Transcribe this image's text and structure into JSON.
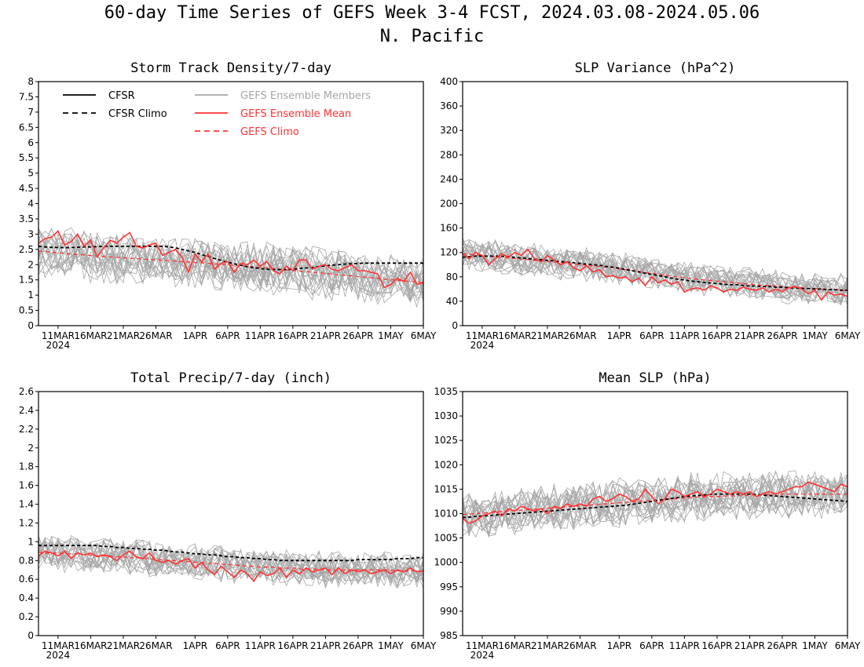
{
  "figure": {
    "title": "60-day Time Series of GEFS Week 3-4 FCST, 2024.03.08-2024.05.06",
    "subtitle": "N. Pacific"
  },
  "x_axis": {
    "ticks": [
      "11MAR",
      "16MAR",
      "21MAR",
      "26MAR",
      "1APR",
      "6APR",
      "11APR",
      "16APR",
      "21APR",
      "26APR",
      "1MAY",
      "6MAY"
    ],
    "tick_day_index": [
      3,
      8,
      13,
      18,
      24,
      29,
      34,
      39,
      44,
      49,
      54,
      59
    ],
    "year_label": "2024",
    "dates": "2024-03-08 to 2024-05-06"
  },
  "legend": {
    "cfsr": "CFSR",
    "cfsr_climo": "CFSR Climo",
    "gefs_members": "GEFS Ensemble Members",
    "gefs_mean": "GEFS Ensemble Mean",
    "gefs_climo": "GEFS Climo"
  },
  "colors": {
    "cfsr": "#000000",
    "members": "#a6a6a6",
    "gefs_mean": "#ff3333",
    "gefs_climo": "#ff3333"
  },
  "chart_data": [
    {
      "type": "line",
      "title": "Storm Track Density/7-day",
      "ylim": [
        0,
        8
      ],
      "yticks": [
        0,
        0.5,
        1,
        1.5,
        2,
        2.5,
        3,
        3.5,
        4,
        4.5,
        5,
        5.5,
        6,
        6.5,
        7,
        7.5,
        8
      ],
      "yticklabels": [
        "0",
        "0.5",
        "1",
        "1.5",
        "2",
        "2.5",
        "3",
        "3.5",
        "4",
        "4.5",
        "5",
        "5.5",
        "6",
        "6.5",
        "7",
        "7.5",
        "8"
      ],
      "cfsr_climo": [
        2.6,
        2.58,
        2.57,
        2.56,
        2.56,
        2.56,
        2.57,
        2.58,
        2.58,
        2.59,
        2.6,
        2.6,
        2.6,
        2.6,
        2.6,
        2.6,
        2.6,
        2.6,
        2.6,
        2.6,
        2.58,
        2.55,
        2.5,
        2.45,
        2.4,
        2.33,
        2.27,
        2.2,
        2.14,
        2.08,
        2.03,
        1.98,
        1.93,
        1.9,
        1.87,
        1.85,
        1.84,
        1.84,
        1.84,
        1.85,
        1.87,
        1.89,
        1.91,
        1.94,
        1.96,
        1.98,
        2.0,
        2.02,
        2.03,
        2.04,
        2.05,
        2.05,
        2.05,
        2.05,
        2.05,
        2.05,
        2.05,
        2.05,
        2.05,
        2.05
      ],
      "gefs_climo": [
        2.45,
        2.43,
        2.41,
        2.39,
        2.37,
        2.35,
        2.33,
        2.32,
        2.3,
        2.28,
        2.27,
        2.25,
        2.24,
        2.22,
        2.21,
        2.2,
        2.18,
        2.17,
        2.16,
        2.14,
        2.13,
        2.12,
        2.1,
        2.09,
        2.07,
        2.06,
        2.04,
        2.03,
        2.01,
        2.0,
        1.98,
        1.96,
        1.95,
        1.93,
        1.91,
        1.89,
        1.87,
        1.85,
        1.83,
        1.81,
        1.79,
        1.77,
        1.75,
        1.73,
        1.71,
        1.69,
        1.67,
        1.65,
        1.63,
        1.61,
        1.59,
        1.57,
        1.55,
        1.53,
        1.51,
        1.49,
        1.47,
        1.45,
        1.43,
        1.42
      ],
      "gefs_mean": [
        2.7,
        2.85,
        2.9,
        3.1,
        2.65,
        2.75,
        3.0,
        2.6,
        2.8,
        2.25,
        2.55,
        2.8,
        2.7,
        2.9,
        3.05,
        2.6,
        2.55,
        2.65,
        2.7,
        2.3,
        2.4,
        2.5,
        2.25,
        1.75,
        2.35,
        2.1,
        2.35,
        1.85,
        2.05,
        2.1,
        1.75,
        2.05,
        2.0,
        2.15,
        1.95,
        2.1,
        1.8,
        1.7,
        1.95,
        1.8,
        2.15,
        2.15,
        1.85,
        1.95,
        2.0,
        1.85,
        1.8,
        1.9,
        2.0,
        1.8,
        1.8,
        1.75,
        1.7,
        1.25,
        1.35,
        1.55,
        1.45,
        1.75,
        1.35,
        1.4
      ],
      "member_count": 21,
      "member_spread": 0.7
    },
    {
      "type": "line",
      "title": "SLP Variance (hPa^2)",
      "ylim": [
        0,
        400
      ],
      "yticks": [
        0,
        40,
        80,
        120,
        160,
        200,
        240,
        280,
        320,
        360,
        400
      ],
      "yticklabels": [
        "0",
        "40",
        "80",
        "120",
        "160",
        "200",
        "240",
        "280",
        "320",
        "360",
        "400"
      ],
      "cfsr_climo": [
        112,
        113,
        114,
        114,
        114,
        114,
        114,
        113,
        112,
        111,
        110,
        109,
        108,
        107,
        106,
        105,
        104,
        103,
        102,
        101,
        100,
        99,
        97,
        96,
        94,
        92,
        90,
        88,
        86,
        84,
        82,
        80,
        78,
        76,
        75,
        73,
        72,
        71,
        70,
        69,
        68,
        67,
        67,
        66,
        65,
        65,
        64,
        64,
        63,
        63,
        62,
        62,
        61,
        61,
        60,
        60,
        59,
        59,
        58,
        58
      ],
      "gefs_climo": [
        118,
        117,
        116,
        115,
        114,
        113,
        112,
        111,
        110,
        109,
        108,
        107,
        106,
        105,
        104,
        103,
        102,
        101,
        100,
        99,
        98,
        97,
        96,
        95,
        93,
        92,
        90,
        89,
        87,
        86,
        84,
        83,
        81,
        80,
        79,
        77,
        76,
        75,
        74,
        73,
        72,
        71,
        70,
        69,
        68,
        67,
        66,
        66,
        65,
        64,
        63,
        63,
        62,
        61,
        61,
        60,
        59,
        59,
        58,
        58
      ],
      "gefs_mean": [
        118,
        110,
        120,
        115,
        100,
        110,
        118,
        112,
        120,
        115,
        125,
        110,
        105,
        115,
        108,
        100,
        105,
        95,
        90,
        98,
        88,
        92,
        80,
        82,
        78,
        80,
        72,
        78,
        66,
        80,
        70,
        75,
        68,
        72,
        55,
        60,
        62,
        58,
        65,
        62,
        55,
        60,
        58,
        63,
        60,
        58,
        62,
        55,
        60,
        56,
        62,
        64,
        60,
        52,
        58,
        42,
        55,
        50,
        52,
        48
      ],
      "member_count": 21,
      "member_spread": 22
    },
    {
      "type": "line",
      "title": "Total Precip/7-day (inch)",
      "ylim": [
        0,
        2.6
      ],
      "yticks": [
        0,
        0.2,
        0.4,
        0.6,
        0.8,
        1,
        1.2,
        1.4,
        1.6,
        1.8,
        2,
        2.2,
        2.4,
        2.6
      ],
      "yticklabels": [
        "0",
        "0.2",
        "0.4",
        "0.6",
        "0.8",
        "1",
        "1.2",
        "1.4",
        "1.6",
        "1.8",
        "2",
        "2.2",
        "2.4",
        "2.6"
      ],
      "cfsr_climo": [
        0.96,
        0.96,
        0.96,
        0.96,
        0.96,
        0.96,
        0.96,
        0.96,
        0.96,
        0.96,
        0.95,
        0.95,
        0.94,
        0.94,
        0.93,
        0.93,
        0.92,
        0.92,
        0.91,
        0.91,
        0.9,
        0.89,
        0.89,
        0.88,
        0.87,
        0.87,
        0.86,
        0.86,
        0.85,
        0.84,
        0.84,
        0.83,
        0.83,
        0.82,
        0.82,
        0.81,
        0.81,
        0.8,
        0.8,
        0.8,
        0.8,
        0.8,
        0.8,
        0.8,
        0.8,
        0.8,
        0.8,
        0.8,
        0.8,
        0.81,
        0.81,
        0.81,
        0.81,
        0.81,
        0.81,
        0.82,
        0.82,
        0.82,
        0.83,
        0.83
      ],
      "gefs_climo": [
        0.89,
        0.88,
        0.88,
        0.88,
        0.87,
        0.87,
        0.87,
        0.86,
        0.86,
        0.85,
        0.85,
        0.85,
        0.84,
        0.84,
        0.83,
        0.83,
        0.82,
        0.82,
        0.81,
        0.81,
        0.8,
        0.8,
        0.79,
        0.79,
        0.78,
        0.78,
        0.77,
        0.77,
        0.76,
        0.76,
        0.75,
        0.75,
        0.74,
        0.74,
        0.73,
        0.73,
        0.73,
        0.72,
        0.72,
        0.72,
        0.71,
        0.71,
        0.71,
        0.71,
        0.7,
        0.7,
        0.7,
        0.7,
        0.7,
        0.7,
        0.7,
        0.7,
        0.7,
        0.7,
        0.7,
        0.69,
        0.69,
        0.69,
        0.69,
        0.69
      ],
      "gefs_mean": [
        0.85,
        0.9,
        0.88,
        0.85,
        0.9,
        0.82,
        0.88,
        0.86,
        0.88,
        0.84,
        0.86,
        0.84,
        0.8,
        0.86,
        0.9,
        0.84,
        0.82,
        0.88,
        0.8,
        0.78,
        0.8,
        0.76,
        0.8,
        0.82,
        0.72,
        0.78,
        0.7,
        0.65,
        0.74,
        0.68,
        0.62,
        0.7,
        0.66,
        0.58,
        0.68,
        0.64,
        0.66,
        0.72,
        0.62,
        0.7,
        0.66,
        0.72,
        0.68,
        0.7,
        0.72,
        0.65,
        0.72,
        0.66,
        0.7,
        0.68,
        0.7,
        0.66,
        0.68,
        0.7,
        0.66,
        0.7,
        0.68,
        0.72,
        0.68,
        0.69
      ],
      "member_count": 21,
      "member_spread": 0.16
    },
    {
      "type": "line",
      "title": "Mean SLP (hPa)",
      "ylim": [
        985,
        1035
      ],
      "yticks": [
        985,
        990,
        995,
        1000,
        1005,
        1010,
        1015,
        1020,
        1025,
        1030,
        1035
      ],
      "yticklabels": [
        "985",
        "990",
        "995",
        "1000",
        "1005",
        "1010",
        "1015",
        "1020",
        "1025",
        "1030",
        "1035"
      ],
      "cfsr_climo": [
        1009.2,
        1009.3,
        1009.4,
        1009.5,
        1009.6,
        1009.7,
        1009.8,
        1009.9,
        1010.0,
        1010.1,
        1010.2,
        1010.3,
        1010.4,
        1010.5,
        1010.6,
        1010.7,
        1010.8,
        1010.9,
        1011.0,
        1011.1,
        1011.2,
        1011.3,
        1011.4,
        1011.5,
        1011.6,
        1011.7,
        1011.9,
        1012.1,
        1012.3,
        1012.5,
        1012.7,
        1012.9,
        1013.1,
        1013.3,
        1013.5,
        1013.6,
        1013.7,
        1013.8,
        1013.9,
        1014.0,
        1014.0,
        1014.0,
        1014.0,
        1014.0,
        1014.0,
        1013.9,
        1013.8,
        1013.7,
        1013.6,
        1013.5,
        1013.4,
        1013.3,
        1013.2,
        1013.1,
        1013.0,
        1012.9,
        1012.8,
        1012.7,
        1012.6,
        1012.5
      ],
      "gefs_climo": [
        1009.8,
        1009.9,
        1010.0,
        1010.1,
        1010.2,
        1010.3,
        1010.4,
        1010.5,
        1010.6,
        1010.7,
        1010.8,
        1010.9,
        1011.0,
        1011.1,
        1011.2,
        1011.3,
        1011.4,
        1011.5,
        1011.6,
        1011.7,
        1011.8,
        1011.9,
        1012.0,
        1012.1,
        1012.2,
        1012.3,
        1012.4,
        1012.5,
        1012.6,
        1012.7,
        1012.8,
        1012.9,
        1013.0,
        1013.1,
        1013.2,
        1013.3,
        1013.4,
        1013.4,
        1013.5,
        1013.5,
        1013.6,
        1013.6,
        1013.7,
        1013.7,
        1013.8,
        1013.8,
        1013.9,
        1013.9,
        1014.0,
        1014.0,
        1014.0,
        1014.0,
        1014.0,
        1014.0,
        1014.0,
        1014.0,
        1014.0,
        1014.0,
        1014.0,
        1014.0
      ],
      "gefs_mean": [
        1009.0,
        1008.0,
        1008.5,
        1009.5,
        1010.0,
        1010.5,
        1009.5,
        1011.0,
        1010.5,
        1011.5,
        1011.0,
        1010.5,
        1011.0,
        1010.0,
        1011.5,
        1011.0,
        1012.0,
        1011.5,
        1012.0,
        1011.5,
        1013.0,
        1013.5,
        1012.5,
        1013.0,
        1014.0,
        1013.5,
        1012.5,
        1013.0,
        1015.0,
        1013.5,
        1012.0,
        1013.0,
        1015.0,
        1014.5,
        1013.5,
        1014.0,
        1014.5,
        1013.5,
        1014.0,
        1015.0,
        1014.5,
        1014.0,
        1014.5,
        1014.0,
        1014.5,
        1013.5,
        1014.0,
        1014.5,
        1014.0,
        1014.5,
        1015.0,
        1015.5,
        1015.5,
        1016.5,
        1016.0,
        1015.5,
        1015.0,
        1014.5,
        1016.0,
        1015.5
      ],
      "member_count": 21,
      "member_spread": 4
    }
  ]
}
